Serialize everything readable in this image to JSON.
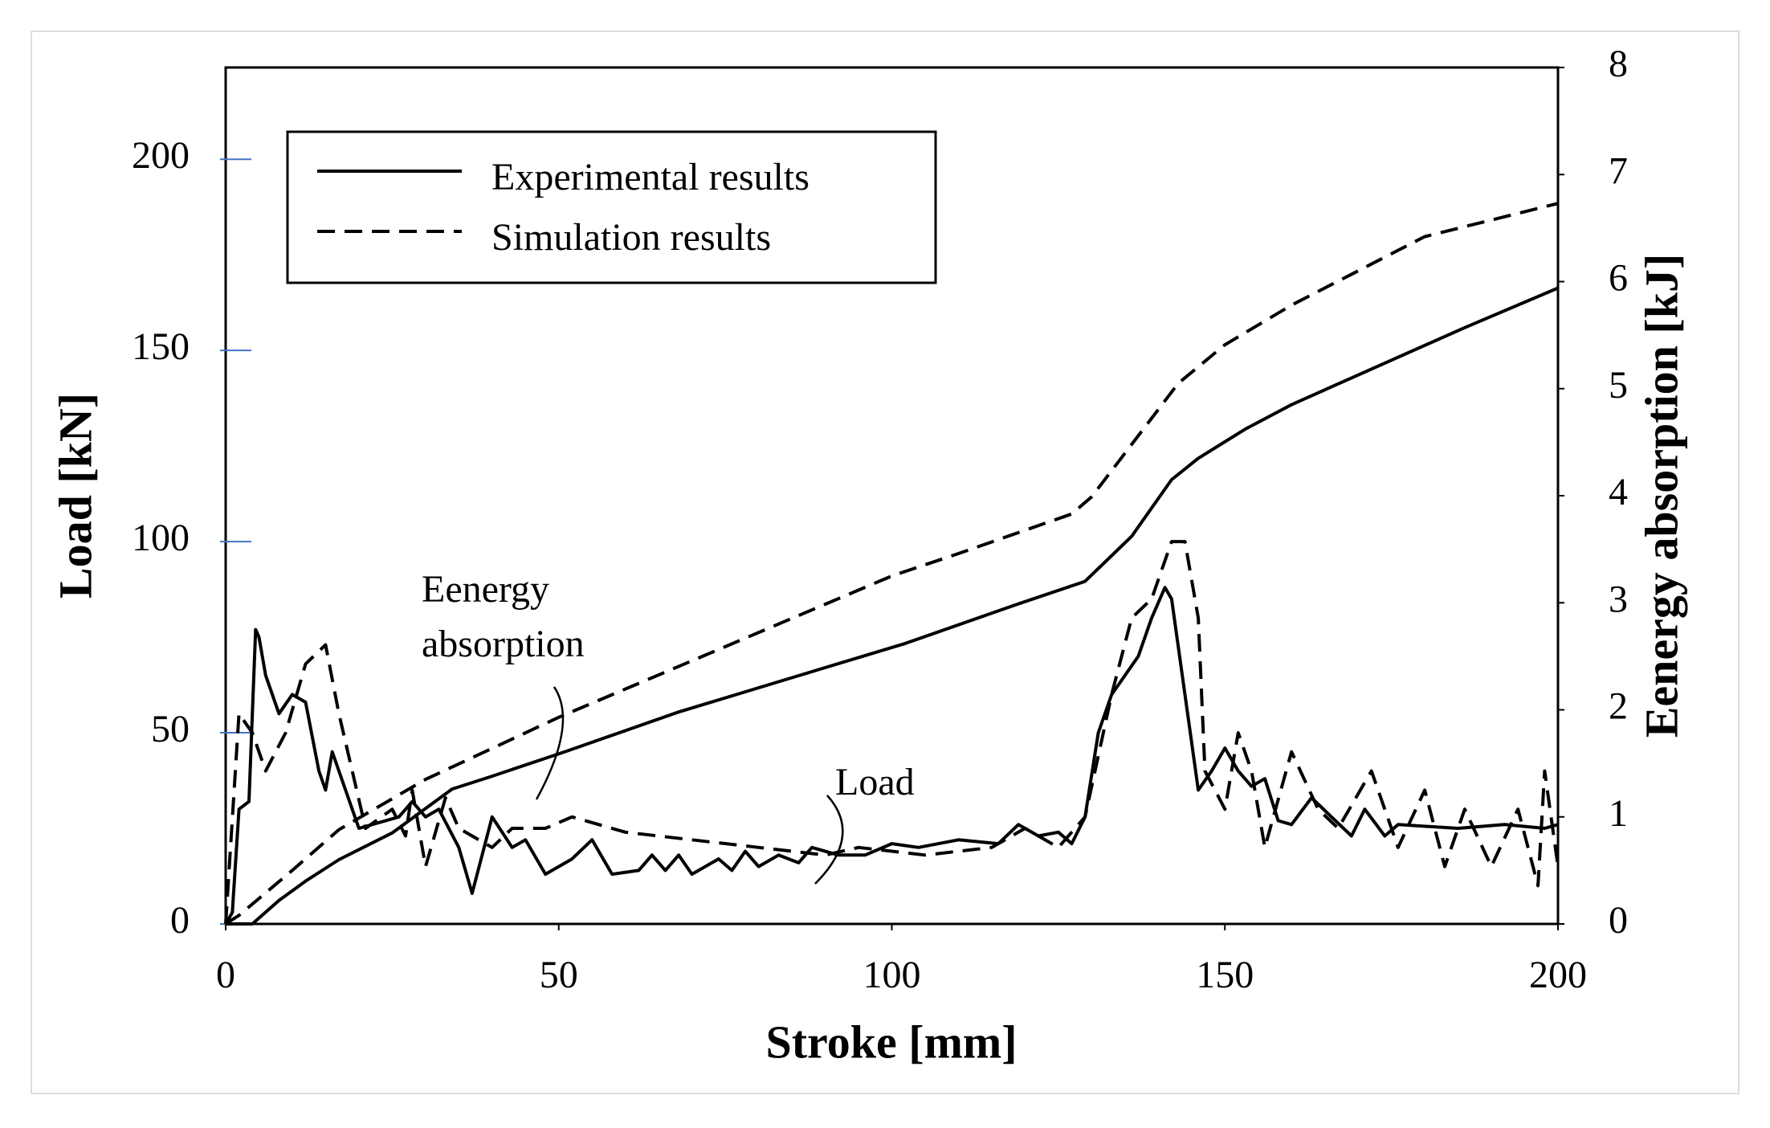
{
  "chart_data": {
    "type": "line",
    "xlabel": "Stroke   [mm]",
    "ylabel": "Load   [kN]",
    "y2label": "Eenergy absorption   [kJ]",
    "xlim": [
      0,
      200
    ],
    "xticks": [
      0,
      50,
      100,
      150,
      200
    ],
    "ylim": [
      0,
      224
    ],
    "yticks": [
      0,
      50,
      100,
      150,
      200
    ],
    "y2lim": [
      0,
      8
    ],
    "y2ticks": [
      0,
      1,
      2,
      3,
      4,
      5,
      6,
      7,
      8
    ],
    "legend_position": "upper left",
    "annotations": [
      {
        "lines": [
          "Eenergy",
          "absorption"
        ]
      },
      {
        "lines": [
          "Load"
        ]
      }
    ],
    "series": [
      {
        "name": "Experimental results",
        "color": "#000000",
        "style": "solid",
        "axis": "y",
        "x": [
          0,
          1,
          2,
          3.5,
          4.5,
          5,
          6,
          8,
          10,
          12,
          14,
          15,
          16,
          18,
          20,
          26,
          28,
          30,
          32,
          35,
          37,
          40,
          43,
          45,
          48,
          52,
          55,
          58,
          62,
          64,
          66,
          68,
          70,
          74,
          76,
          78,
          80,
          83,
          86,
          88,
          92,
          96,
          100,
          104,
          110,
          116,
          119,
          122,
          125,
          127,
          129,
          131,
          133,
          135,
          137,
          139,
          141,
          142,
          144,
          146,
          148,
          150,
          152,
          154,
          156,
          158,
          160,
          163,
          166,
          169,
          171,
          174,
          176,
          185,
          192,
          198,
          200
        ],
        "values": [
          0,
          3,
          30,
          32,
          77,
          75,
          65,
          55,
          60,
          58,
          40,
          35,
          45,
          35,
          25,
          28,
          32,
          28,
          30,
          20,
          8,
          28,
          20,
          22,
          13,
          17,
          22,
          13,
          14,
          18,
          14,
          18,
          13,
          17,
          14,
          19,
          15,
          18,
          16,
          20,
          18,
          18,
          21,
          20,
          22,
          21,
          26,
          23,
          24,
          21,
          28,
          50,
          60,
          65,
          70,
          80,
          88,
          85,
          60,
          35,
          40,
          46,
          40,
          36,
          38,
          27,
          26,
          33,
          28,
          23,
          30,
          23,
          26,
          25,
          26,
          25,
          26
        ]
      },
      {
        "name": "Simulation results",
        "color": "#000000",
        "style": "dashed",
        "axis": "y",
        "x": [
          0,
          2,
          4,
          6,
          9,
          12,
          15,
          17,
          19,
          21,
          25,
          27,
          28,
          30,
          33,
          35,
          40,
          43,
          47,
          48,
          52,
          60,
          70,
          80,
          90,
          95,
          105,
          115,
          120,
          125,
          129,
          133,
          136,
          139,
          142,
          144,
          146,
          147,
          150,
          152,
          154,
          156,
          160,
          164,
          167,
          172,
          176,
          180,
          183,
          186,
          190,
          194,
          197,
          198,
          200
        ],
        "values": [
          0,
          55,
          50,
          40,
          50,
          68,
          73,
          55,
          40,
          25,
          30,
          23,
          35,
          15,
          33,
          25,
          20,
          25,
          25,
          25,
          28,
          24,
          22,
          20,
          18,
          20,
          18,
          20,
          25,
          20,
          28,
          60,
          80,
          85,
          100,
          100,
          80,
          40,
          30,
          50,
          40,
          20,
          45,
          30,
          25,
          40,
          20,
          35,
          15,
          30,
          15,
          30,
          10,
          40,
          15
        ]
      },
      {
        "color": "#000000",
        "style": "solid",
        "axis": "y2",
        "x": [
          0,
          4,
          8,
          12,
          17,
          25,
          34,
          40,
          51,
          68,
          85,
          102,
          119,
          129,
          136,
          142,
          146,
          153,
          160,
          169,
          186,
          200
        ],
        "values": [
          0,
          0,
          0.22,
          0.4,
          0.6,
          0.85,
          1.26,
          1.38,
          1.61,
          1.98,
          2.3,
          2.62,
          2.99,
          3.2,
          3.62,
          4.15,
          4.35,
          4.62,
          4.85,
          5.1,
          5.57,
          5.94
        ]
      },
      {
        "color": "#000000",
        "style": "dashed",
        "axis": "y2",
        "x": [
          0,
          2,
          10,
          17,
          30,
          50,
          100,
          110,
          127,
          130,
          143,
          150,
          160,
          180,
          200
        ],
        "values": [
          0,
          0.08,
          0.5,
          0.88,
          1.35,
          1.93,
          3.25,
          3.46,
          3.83,
          3.99,
          5.05,
          5.41,
          5.78,
          6.42,
          6.73
        ]
      }
    ]
  }
}
